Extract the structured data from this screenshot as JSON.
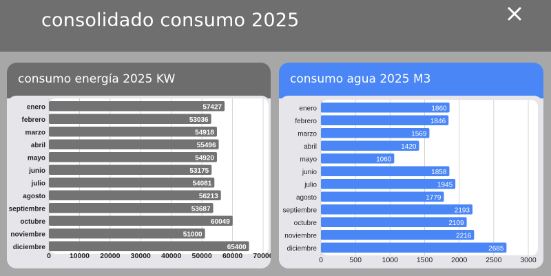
{
  "header": {
    "title": "consolidado consumo 2025"
  },
  "chart_data": [
    {
      "type": "bar",
      "orientation": "horizontal",
      "title": "consumo energía 2025 KW",
      "categories": [
        "enero",
        "febrero",
        "marzo",
        "abril",
        "mayo",
        "junio",
        "julio",
        "agosto",
        "septiembre",
        "octubre",
        "noviembre",
        "diciembre"
      ],
      "values": [
        57427,
        53036,
        54918,
        55496,
        54920,
        53175,
        54081,
        56213,
        53687,
        60049,
        51000,
        65400
      ],
      "xlim": [
        0,
        70000
      ],
      "xticks": [
        0,
        10000,
        20000,
        30000,
        40000,
        50000,
        60000,
        70000
      ],
      "grid": true,
      "bar_color": "#737373"
    },
    {
      "type": "bar",
      "orientation": "horizontal",
      "title": "consumo agua 2025 M3",
      "categories": [
        "enero",
        "febrero",
        "marzo",
        "abril",
        "mayo",
        "junio",
        "julio",
        "agosto",
        "septiembre",
        "octubre",
        "noviembre",
        "diciembre"
      ],
      "values": [
        1860,
        1846,
        1569,
        1420,
        1060,
        1858,
        1945,
        1779,
        2193,
        2109,
        2216,
        2685
      ],
      "xlim": [
        0,
        3000
      ],
      "xticks": [
        0,
        500,
        1000,
        1500,
        2000,
        2500,
        3000
      ],
      "grid": true,
      "bar_color": "#4a86f5"
    }
  ]
}
